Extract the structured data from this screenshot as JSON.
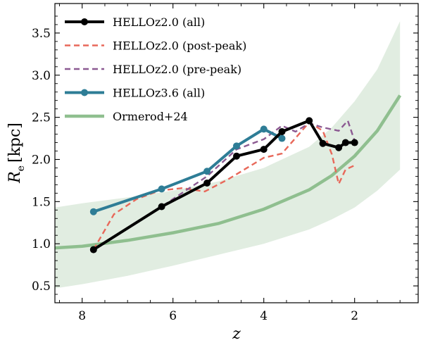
{
  "chart_data": {
    "type": "line",
    "xlabel": "z",
    "ylabel": "R",
    "ylabel_sub": "e",
    "ylabel_unit": "[kpc]",
    "xlim": [
      8.6,
      0.6
    ],
    "ylim": [
      0.3,
      3.85
    ],
    "x_inverted": true,
    "xticks": [
      8,
      6,
      4,
      2
    ],
    "yticks": [
      0.5,
      1.0,
      1.5,
      2.0,
      2.5,
      3.0,
      3.5
    ],
    "legend_position": "top-left",
    "grid": false,
    "series": [
      {
        "name": "HELLOz2.0 (all)",
        "color": "#000000",
        "style": "solid-marker",
        "x": [
          7.75,
          6.25,
          5.25,
          4.6,
          4.0,
          3.6,
          3.0,
          2.7,
          2.35,
          2.2,
          2.0
        ],
        "y": [
          0.93,
          1.44,
          1.72,
          2.04,
          2.12,
          2.33,
          2.46,
          2.19,
          2.14,
          2.2,
          2.2
        ]
      },
      {
        "name": "HELLOz2.0 (post-peak)",
        "color": "#e8685a",
        "style": "dashed",
        "x": [
          7.75,
          7.3,
          6.8,
          6.3,
          5.8,
          5.3,
          4.8,
          4.0,
          3.6,
          3.0,
          2.7,
          2.5,
          2.35,
          2.2,
          2.0
        ],
        "y": [
          0.93,
          1.35,
          1.53,
          1.63,
          1.66,
          1.62,
          1.76,
          2.02,
          2.07,
          2.44,
          2.34,
          2.06,
          1.71,
          1.88,
          1.93
        ]
      },
      {
        "name": "HELLOz2.0 (pre-peak)",
        "color": "#8c5a92",
        "style": "dashed",
        "x": [
          7.75,
          6.25,
          5.25,
          4.6,
          4.0,
          3.6,
          3.3,
          3.0,
          2.7,
          2.35,
          2.15,
          2.0
        ],
        "y": [
          0.93,
          1.44,
          1.8,
          2.12,
          2.24,
          2.4,
          2.33,
          2.43,
          2.38,
          2.34,
          2.46,
          2.22
        ]
      },
      {
        "name": "HELLOz3.6 (all)",
        "color": "#2e7d96",
        "style": "solid-marker",
        "x": [
          7.75,
          6.25,
          5.25,
          4.6,
          4.0,
          3.6
        ],
        "y": [
          1.38,
          1.65,
          1.86,
          2.16,
          2.36,
          2.25
        ]
      },
      {
        "name": "Ormerod+24",
        "color": "#8fbf8f",
        "style": "solid-thick",
        "x": [
          8.6,
          8.0,
          7.0,
          6.0,
          5.0,
          4.0,
          3.0,
          2.5,
          2.0,
          1.5,
          1.0
        ],
        "y": [
          0.95,
          0.97,
          1.04,
          1.13,
          1.24,
          1.41,
          1.64,
          1.81,
          2.04,
          2.34,
          2.76
        ],
        "band_lower": [
          0.47,
          0.52,
          0.62,
          0.74,
          0.87,
          1.0,
          1.17,
          1.29,
          1.43,
          1.63,
          1.88
        ],
        "band_upper": [
          1.43,
          1.48,
          1.55,
          1.63,
          1.74,
          1.9,
          2.15,
          2.38,
          2.69,
          3.07,
          3.64
        ],
        "band_color": "#c9dfc9"
      }
    ]
  }
}
